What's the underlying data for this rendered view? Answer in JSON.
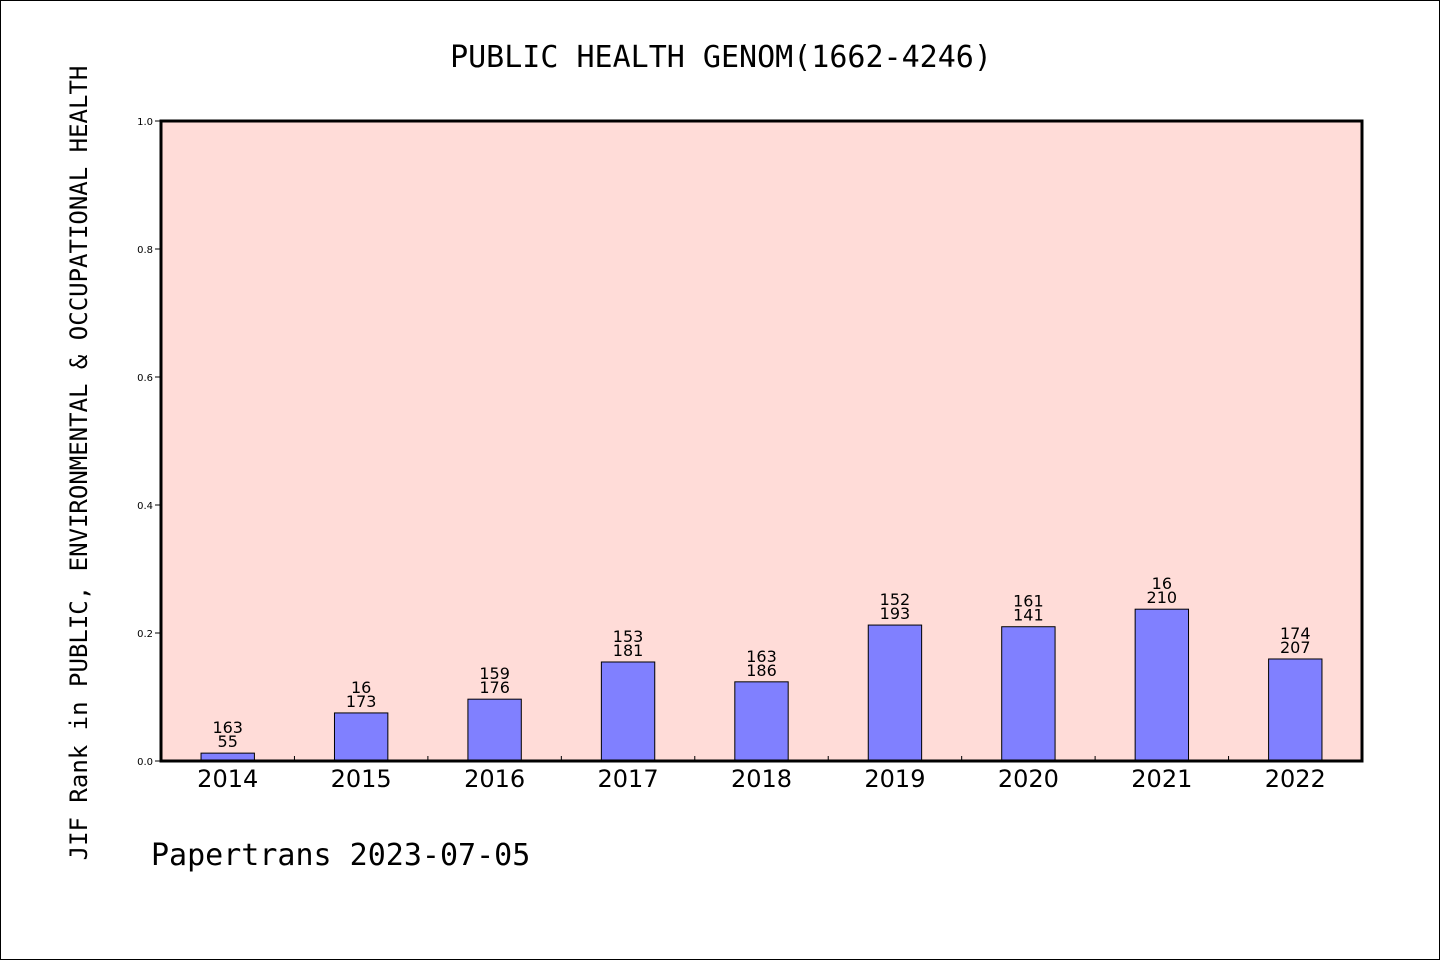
{
  "chart_data": {
    "type": "bar",
    "title": "PUBLIC HEALTH GENOM(1662-4246)",
    "ylabel": "JIF Rank in PUBLIC, ENVIRONMENTAL & OCCUPATIONAL HEALTH",
    "xlabel": "",
    "footer": "Papertrans 2023-07-05",
    "categories": [
      "2014",
      "2015",
      "2016",
      "2017",
      "2018",
      "2019",
      "2020",
      "2021",
      "2022"
    ],
    "values": [
      0.0123,
      0.0751,
      0.0966,
      0.1547,
      0.1237,
      0.2124,
      0.2098,
      0.2372,
      0.1594
    ],
    "rank_labels": [
      "163",
      "16",
      "159",
      "153",
      "163",
      "152",
      "161",
      "16",
      "174"
    ],
    "total_labels": [
      "55",
      "173",
      "176",
      "181",
      "186",
      "193",
      "141",
      "210",
      "207"
    ],
    "ylim": [
      0,
      1.0
    ],
    "yticks": [
      "0.0",
      "0.2",
      "0.4",
      "0.6",
      "0.8",
      "1.0"
    ],
    "grid": false,
    "colors": {
      "bar": "#8080ff",
      "plot_background": "#ffdcd8",
      "axis": "#000000"
    }
  }
}
